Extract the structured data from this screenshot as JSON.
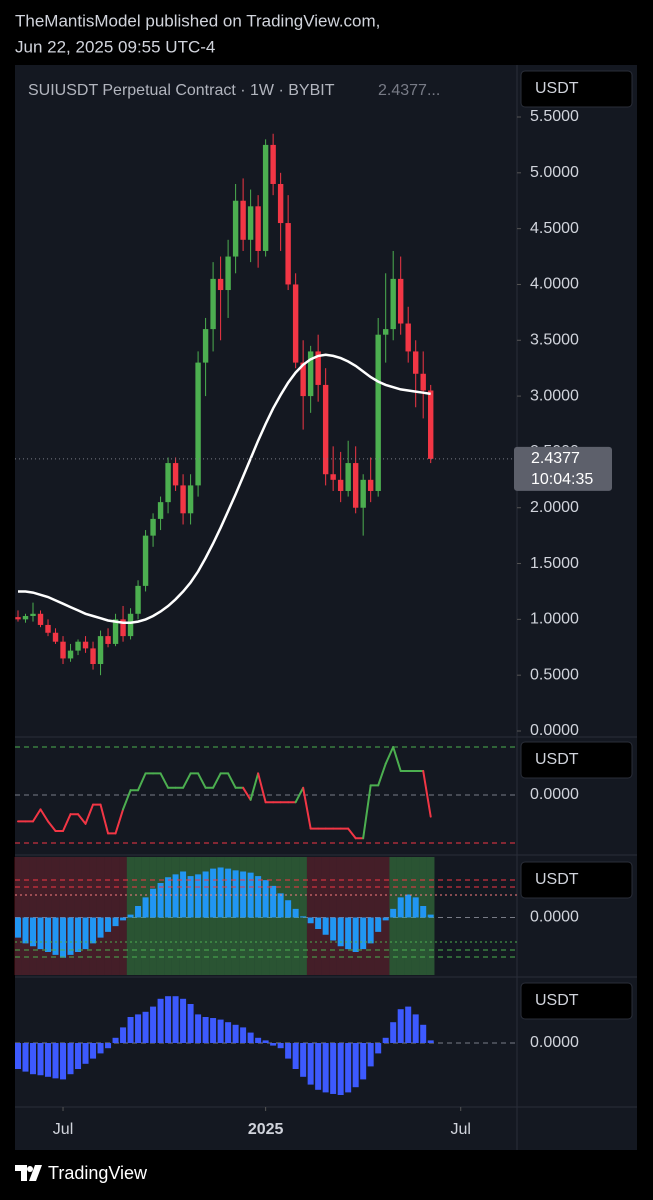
{
  "header": {
    "line1": "TheMantisModel published on TradingView.com,",
    "line2": "Jun 22, 2025 09:55 UTC-4",
    "symbol": "SUIUSDT Perpetual Contract · 1W · BYBIT",
    "symbol_price": "2.4377...",
    "countdown": "10:04:35",
    "footer": "TradingView"
  },
  "chart_data": [
    {
      "type": "candlestick",
      "unit": "USDT",
      "open": [
        1.02,
        1.0,
        1.03,
        1.05,
        0.95,
        0.88,
        0.8,
        0.65,
        0.72,
        0.8,
        0.74,
        0.6,
        0.85,
        0.78,
        1.0,
        0.85,
        1.05,
        1.3,
        1.75,
        1.9,
        2.05,
        2.4,
        2.2,
        1.95,
        2.2,
        3.3,
        3.6,
        4.05,
        3.95,
        4.25,
        4.75,
        4.4,
        4.7,
        4.3,
        5.25,
        4.9,
        4.55,
        4.0,
        3.3,
        3.0,
        3.4,
        3.1,
        2.3,
        2.25,
        2.15,
        2.4,
        2.0,
        2.25,
        2.15,
        3.55,
        3.6,
        4.05,
        3.65,
        3.4,
        3.2,
        3.05
      ],
      "high": [
        1.08,
        1.05,
        1.15,
        1.08,
        1.0,
        0.92,
        0.85,
        0.78,
        0.82,
        0.85,
        0.8,
        0.9,
        0.92,
        1.05,
        1.12,
        1.1,
        1.35,
        1.8,
        1.95,
        2.1,
        2.45,
        2.45,
        2.3,
        2.3,
        3.4,
        3.7,
        4.2,
        4.25,
        4.4,
        4.9,
        4.95,
        4.85,
        4.8,
        5.3,
        5.35,
        5.0,
        4.8,
        4.1,
        3.5,
        3.45,
        3.55,
        3.25,
        2.55,
        2.5,
        2.6,
        2.55,
        2.3,
        2.45,
        3.7,
        4.1,
        4.3,
        4.25,
        3.8,
        3.5,
        3.4,
        3.1
      ],
      "low": [
        0.98,
        0.97,
        0.98,
        0.93,
        0.85,
        0.78,
        0.6,
        0.62,
        0.68,
        0.7,
        0.55,
        0.5,
        0.75,
        0.76,
        0.8,
        0.82,
        1.0,
        1.25,
        1.65,
        1.8,
        1.95,
        2.15,
        1.85,
        1.85,
        2.1,
        3.0,
        3.4,
        3.5,
        3.7,
        4.1,
        4.3,
        4.2,
        4.15,
        4.25,
        4.8,
        4.3,
        3.95,
        3.25,
        2.7,
        2.85,
        2.95,
        2.2,
        2.15,
        2.05,
        2.1,
        1.95,
        1.75,
        2.05,
        2.1,
        3.3,
        3.5,
        3.55,
        3.3,
        2.9,
        2.8,
        2.4
      ],
      "close": [
        1.0,
        1.03,
        1.05,
        0.95,
        0.88,
        0.8,
        0.65,
        0.72,
        0.8,
        0.74,
        0.6,
        0.85,
        0.78,
        1.0,
        0.85,
        1.05,
        1.3,
        1.75,
        1.9,
        2.05,
        2.4,
        2.2,
        1.95,
        2.2,
        3.3,
        3.6,
        4.05,
        3.95,
        4.25,
        4.75,
        4.4,
        4.7,
        4.3,
        5.25,
        4.9,
        4.55,
        4.0,
        3.3,
        3.0,
        3.4,
        3.1,
        2.3,
        2.25,
        2.15,
        2.4,
        2.0,
        2.25,
        2.15,
        3.55,
        3.6,
        4.05,
        3.65,
        3.4,
        3.2,
        3.05,
        2.4377
      ],
      "up_color": "#4caf50",
      "down_color": "#f23645",
      "series": [
        {
          "color": "#ffffff",
          "values": [
            1.25,
            1.25,
            1.24,
            1.22,
            1.2,
            1.17,
            1.14,
            1.11,
            1.08,
            1.05,
            1.03,
            1.01,
            0.99,
            0.98,
            0.97,
            0.97,
            0.98,
            1.0,
            1.03,
            1.07,
            1.12,
            1.18,
            1.25,
            1.33,
            1.43,
            1.55,
            1.68,
            1.82,
            1.97,
            2.12,
            2.28,
            2.44,
            2.6,
            2.75,
            2.89,
            3.01,
            3.12,
            3.21,
            3.28,
            3.33,
            3.36,
            3.37,
            3.36,
            3.34,
            3.31,
            3.27,
            3.22,
            3.17,
            3.13,
            3.1,
            3.08,
            3.06,
            3.05,
            3.04,
            3.03,
            3.02
          ]
        }
      ],
      "last": 2.4377,
      "ylim": [
        0,
        5.5
      ],
      "yticks": [
        {
          "value": 0,
          "label": "0.0000"
        },
        {
          "value": 0.5,
          "label": "0.5000"
        },
        {
          "value": 1,
          "label": "1.0000"
        },
        {
          "value": 1.5,
          "label": "1.5000"
        },
        {
          "value": 2,
          "label": "2.0000"
        },
        {
          "value": 2.5,
          "label": "2.5000"
        },
        {
          "value": 3,
          "label": "3.0000"
        },
        {
          "value": 3.5,
          "label": "3.5000"
        },
        {
          "value": 4,
          "label": "4.0000"
        },
        {
          "value": 4.5,
          "label": "4.5000"
        },
        {
          "value": 5,
          "label": "5.0000"
        },
        {
          "value": 5.5,
          "label": "5.5000"
        }
      ],
      "xlim": [
        -0.4,
        66.5
      ],
      "xticks": [
        {
          "value": 6,
          "label": "Jul"
        },
        {
          "value": 33,
          "label": "2025"
        },
        {
          "value": 59,
          "label": "Jul"
        }
      ]
    },
    {
      "type": "line",
      "unit": "USDT",
      "up_color": "#4caf50",
      "down_color": "#f23645",
      "values": [
        -0.55,
        -0.55,
        -0.55,
        -0.3,
        -0.55,
        -0.75,
        -0.75,
        -0.4,
        -0.4,
        -0.6,
        -0.2,
        -0.2,
        -0.8,
        -0.8,
        -0.3,
        0.1,
        0.1,
        0.45,
        0.45,
        0.45,
        0.15,
        0.15,
        0.15,
        0.45,
        0.45,
        0.15,
        0.15,
        0.45,
        0.45,
        0.15,
        0.15,
        -0.1,
        0.45,
        -0.15,
        -0.15,
        -0.15,
        -0.15,
        -0.15,
        0.15,
        -0.7,
        -0.7,
        -0.7,
        -0.7,
        -0.7,
        -0.7,
        -0.9,
        -0.9,
        0.2,
        0.2,
        0.65,
        1.0,
        0.5,
        0.5,
        0.5,
        0.5,
        -0.45
      ],
      "ylim": [
        -1,
        1
      ],
      "yticks": [
        {
          "value": 0,
          "label": "0.0000"
        }
      ]
    },
    {
      "type": "bar",
      "unit": "USDT",
      "color": "#2196f3",
      "values": [
        -0.35,
        -0.45,
        -0.5,
        -0.55,
        -0.6,
        -0.65,
        -0.7,
        -0.65,
        -0.6,
        -0.55,
        -0.45,
        -0.35,
        -0.25,
        -0.15,
        -0.05,
        0.05,
        0.2,
        0.35,
        0.5,
        0.6,
        0.7,
        0.75,
        0.8,
        0.72,
        0.75,
        0.8,
        0.85,
        0.87,
        0.85,
        0.82,
        0.8,
        0.78,
        0.72,
        0.65,
        0.55,
        0.42,
        0.3,
        0.15,
        0.02,
        -0.1,
        -0.2,
        -0.3,
        -0.4,
        -0.5,
        -0.55,
        -0.6,
        -0.55,
        -0.45,
        -0.25,
        -0.05,
        0.15,
        0.35,
        0.4,
        0.35,
        0.2,
        0.05
      ],
      "ylim": [
        -1,
        1
      ],
      "yticks": [
        {
          "value": 0,
          "label": "0.0000"
        }
      ]
    },
    {
      "type": "bar",
      "unit": "USDT",
      "color": "#3d5afe",
      "values": [
        -0.5,
        -0.55,
        -0.6,
        -0.62,
        -0.65,
        -0.68,
        -0.7,
        -0.6,
        -0.5,
        -0.4,
        -0.3,
        -0.2,
        -0.1,
        0.1,
        0.3,
        0.5,
        0.55,
        0.6,
        0.7,
        0.85,
        0.9,
        0.9,
        0.85,
        0.75,
        0.55,
        0.5,
        0.48,
        0.45,
        0.4,
        0.35,
        0.3,
        0.2,
        0.1,
        0.05,
        -0.05,
        -0.1,
        -0.3,
        -0.5,
        -0.65,
        -0.8,
        -0.9,
        -0.95,
        -0.98,
        -1.0,
        -0.95,
        -0.85,
        -0.7,
        -0.45,
        -0.2,
        0.1,
        0.4,
        0.65,
        0.7,
        0.55,
        0.35,
        0.05
      ],
      "ylim": [
        -1,
        1
      ],
      "yticks": [
        {
          "value": 0,
          "label": "0.0000"
        }
      ]
    }
  ]
}
